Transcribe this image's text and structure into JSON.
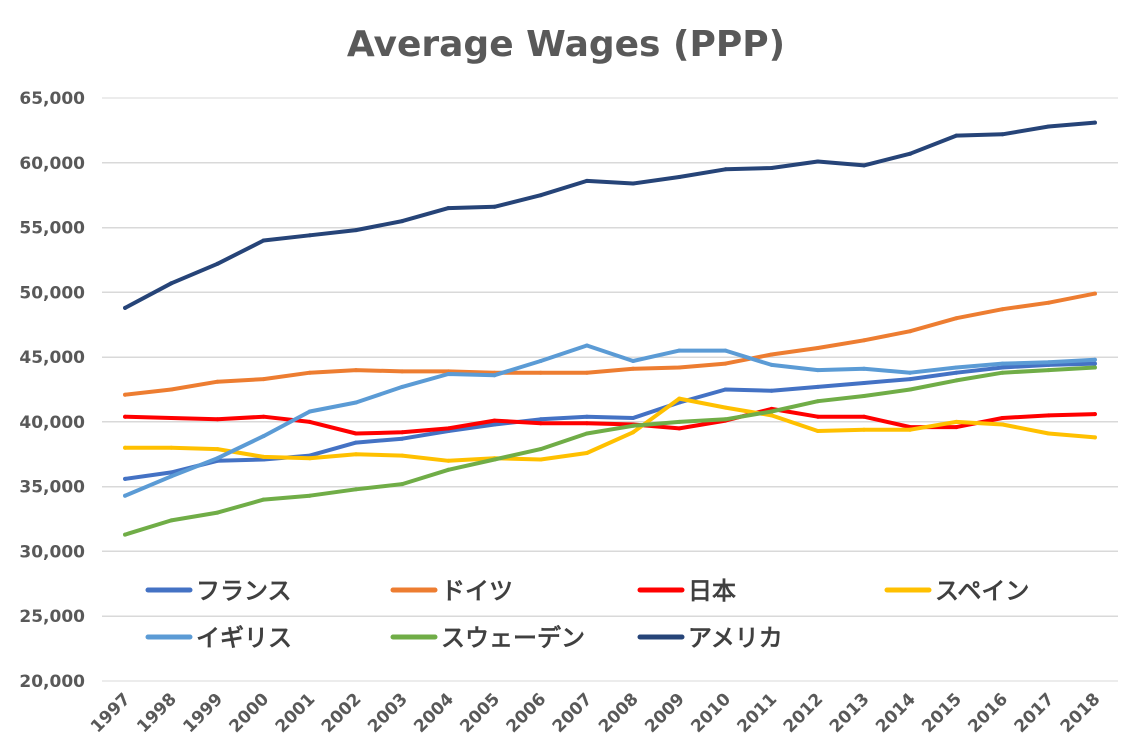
{
  "chart_data": {
    "type": "line",
    "title": "Average Wages (PPP)",
    "xlabel": "",
    "ylabel": "",
    "categories": [
      "1997",
      "1998",
      "1999",
      "2000",
      "2001",
      "2002",
      "2003",
      "2004",
      "2005",
      "2006",
      "2007",
      "2008",
      "2009",
      "2010",
      "2011",
      "2012",
      "2013",
      "2014",
      "2015",
      "2016",
      "2017",
      "2018"
    ],
    "ylim": [
      20000,
      65000
    ],
    "yticks": [
      20000,
      25000,
      30000,
      35000,
      40000,
      45000,
      50000,
      55000,
      60000,
      65000
    ],
    "ytick_labels": [
      "20,000",
      "25,000",
      "30,000",
      "35,000",
      "40,000",
      "45,000",
      "50,000",
      "55,000",
      "60,000",
      "65,000"
    ],
    "grid": true,
    "legend_position": "bottom-inside",
    "series": [
      {
        "name": "フランス",
        "color": "#4472C4",
        "values": [
          35600,
          36100,
          37000,
          37100,
          37400,
          38400,
          38700,
          39300,
          39800,
          40200,
          40400,
          40300,
          41500,
          42500,
          42400,
          42700,
          43000,
          43300,
          43800,
          44200,
          44400,
          44500
        ]
      },
      {
        "name": "ドイツ",
        "color": "#ED7D31",
        "values": [
          42100,
          42500,
          43100,
          43300,
          43800,
          44000,
          43900,
          43900,
          43800,
          43800,
          43800,
          44100,
          44200,
          44500,
          45200,
          45700,
          46300,
          47000,
          48000,
          48700,
          49200,
          49900
        ]
      },
      {
        "name": "日本",
        "color": "#FF0000",
        "values": [
          40400,
          40300,
          40200,
          40400,
          40000,
          39100,
          39200,
          39500,
          40100,
          39900,
          39900,
          39800,
          39500,
          40100,
          41000,
          40400,
          40400,
          39600,
          39600,
          40300,
          40500,
          40600
        ]
      },
      {
        "name": "スペイン",
        "color": "#FFC000",
        "values": [
          38000,
          38000,
          37900,
          37300,
          37200,
          37500,
          37400,
          37000,
          37200,
          37100,
          37600,
          39200,
          41800,
          41100,
          40500,
          39300,
          39400,
          39400,
          40000,
          39800,
          39100,
          38800
        ]
      },
      {
        "name": "イギリス",
        "color": "#5B9BD5",
        "values": [
          34300,
          35800,
          37200,
          38900,
          40800,
          41500,
          42700,
          43700,
          43600,
          44700,
          45900,
          44700,
          45500,
          45500,
          44400,
          44000,
          44100,
          43800,
          44200,
          44500,
          44600,
          44800
        ]
      },
      {
        "name": "スウェーデン",
        "color": "#70AD47",
        "values": [
          31300,
          32400,
          33000,
          34000,
          34300,
          34800,
          35200,
          36300,
          37100,
          37900,
          39100,
          39700,
          40000,
          40200,
          40800,
          41600,
          42000,
          42500,
          43200,
          43800,
          44000,
          44200
        ]
      },
      {
        "name": "アメリカ",
        "color": "#264478",
        "values": [
          48800,
          50700,
          52200,
          54000,
          54400,
          54800,
          55500,
          56500,
          56600,
          57500,
          58600,
          58400,
          58900,
          59500,
          59600,
          60100,
          59800,
          60700,
          62100,
          62200,
          62800,
          63100
        ]
      }
    ]
  }
}
